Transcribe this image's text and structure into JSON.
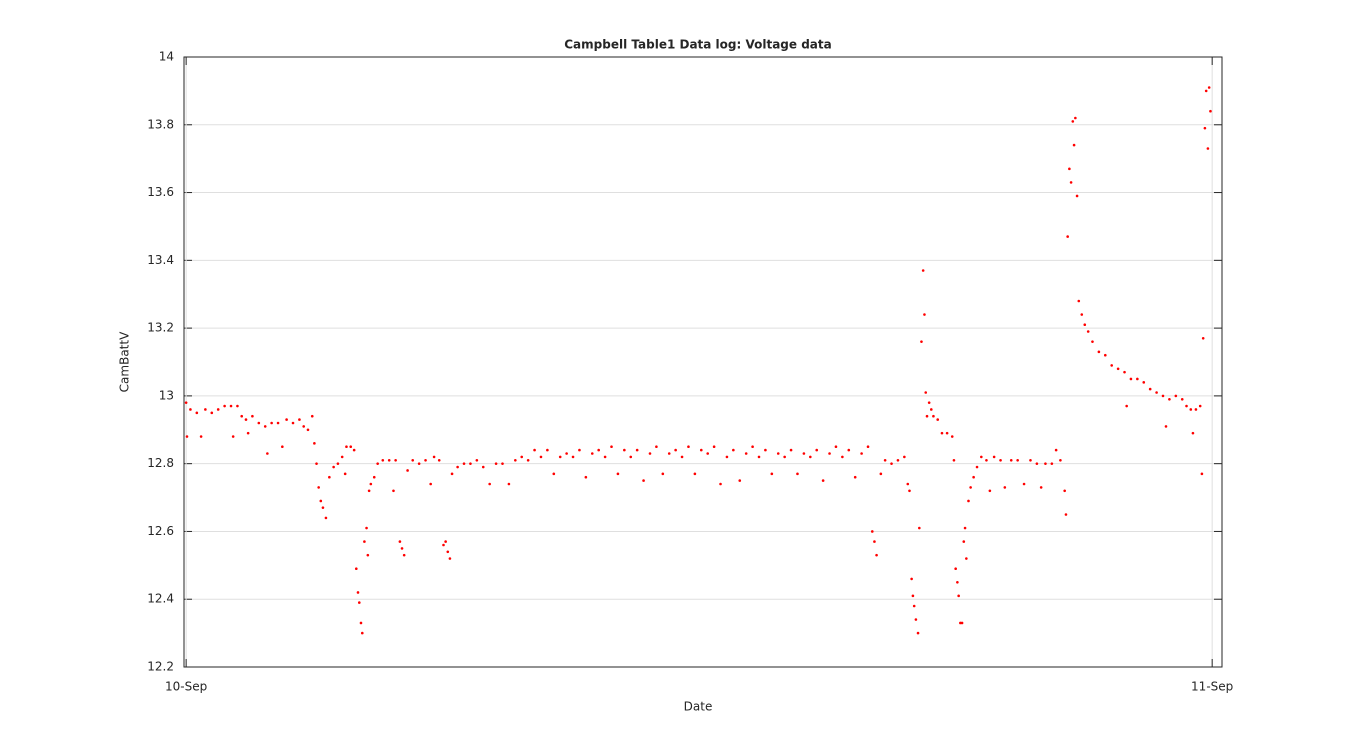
{
  "chart_data": {
    "type": "scatter",
    "title": "Campbell Table1 Data log: Voltage data",
    "x_label": "Date",
    "y_label": "CamBattV",
    "xlim": [
      -0.05,
      24.23
    ],
    "ylim": [
      12.2,
      14
    ],
    "xticks": [
      {
        "value": 0,
        "label": "10-Sep"
      },
      {
        "value": 24,
        "label": "11-Sep"
      }
    ],
    "yticks": [
      12.2,
      12.4,
      12.6,
      12.8,
      13,
      13.2,
      13.4,
      13.6,
      13.8,
      14
    ],
    "grid": true,
    "series": [
      {
        "color": "#ff0000",
        "x": [
          0.0,
          0.02,
          0.1,
          0.25,
          0.35,
          0.45,
          0.6,
          0.75,
          0.9,
          1.05,
          1.1,
          1.2,
          1.3,
          1.4,
          1.45,
          1.55,
          1.7,
          1.85,
          1.9,
          2.0,
          2.15,
          2.25,
          2.35,
          2.5,
          2.65,
          2.75,
          2.85,
          2.95,
          3.0,
          3.05,
          3.1,
          3.15,
          3.2,
          3.27,
          3.35,
          3.45,
          3.55,
          3.65,
          3.72,
          3.75,
          3.85,
          3.93,
          3.98,
          4.02,
          4.05,
          4.09,
          4.12,
          4.17,
          4.22,
          4.25,
          4.28,
          4.32,
          4.4,
          4.48,
          4.6,
          4.75,
          4.85,
          4.9,
          5.0,
          5.05,
          5.1,
          5.18,
          5.3,
          5.45,
          5.6,
          5.72,
          5.8,
          5.92,
          6.02,
          6.07,
          6.12,
          6.17,
          6.22,
          6.35,
          6.5,
          6.65,
          6.8,
          6.95,
          7.1,
          7.25,
          7.4,
          7.55,
          7.7,
          7.85,
          8.0,
          8.15,
          8.3,
          8.45,
          8.6,
          8.75,
          8.9,
          9.05,
          9.2,
          9.35,
          9.5,
          9.65,
          9.8,
          9.95,
          10.1,
          10.25,
          10.4,
          10.55,
          10.7,
          10.85,
          11.0,
          11.15,
          11.3,
          11.45,
          11.6,
          11.75,
          11.9,
          12.05,
          12.2,
          12.35,
          12.5,
          12.65,
          12.8,
          12.95,
          13.1,
          13.25,
          13.4,
          13.55,
          13.7,
          13.85,
          14.0,
          14.15,
          14.3,
          14.45,
          14.6,
          14.75,
          14.9,
          15.05,
          15.2,
          15.35,
          15.5,
          15.65,
          15.8,
          15.95,
          16.05,
          16.1,
          16.15,
          16.25,
          16.35,
          16.5,
          16.65,
          16.8,
          16.88,
          16.92,
          16.97,
          17.0,
          17.03,
          17.07,
          17.12,
          17.15,
          17.2,
          17.24,
          17.27,
          17.3,
          17.33,
          17.38,
          17.43,
          17.48,
          17.58,
          17.68,
          17.8,
          17.92,
          17.96,
          18.0,
          18.04,
          18.07,
          18.11,
          18.15,
          18.19,
          18.22,
          18.25,
          18.3,
          18.35,
          18.42,
          18.5,
          18.6,
          18.72,
          18.8,
          18.9,
          19.05,
          19.15,
          19.3,
          19.45,
          19.6,
          19.75,
          19.9,
          20.0,
          20.1,
          20.25,
          20.35,
          20.45,
          20.55,
          20.58,
          20.62,
          20.66,
          20.7,
          20.74,
          20.77,
          20.8,
          20.84,
          20.88,
          20.95,
          21.02,
          21.1,
          21.2,
          21.35,
          21.5,
          21.65,
          21.8,
          21.95,
          22.0,
          22.1,
          22.25,
          22.4,
          22.55,
          22.7,
          22.85,
          22.92,
          23.0,
          23.15,
          23.3,
          23.4,
          23.5,
          23.55,
          23.62,
          23.72,
          23.76,
          23.79,
          23.83,
          23.86,
          23.9,
          23.93,
          23.96
        ],
        "values": [
          12.98,
          12.88,
          12.96,
          12.95,
          12.88,
          12.96,
          12.95,
          12.96,
          12.97,
          12.97,
          12.88,
          12.97,
          12.94,
          12.93,
          12.89,
          12.94,
          12.92,
          12.91,
          12.83,
          12.92,
          12.92,
          12.85,
          12.93,
          12.92,
          12.93,
          12.91,
          12.9,
          12.94,
          12.86,
          12.8,
          12.73,
          12.69,
          12.67,
          12.64,
          12.76,
          12.79,
          12.8,
          12.82,
          12.77,
          12.85,
          12.85,
          12.84,
          12.49,
          12.42,
          12.39,
          12.33,
          12.3,
          12.57,
          12.61,
          12.53,
          12.72,
          12.74,
          12.76,
          12.8,
          12.81,
          12.81,
          12.72,
          12.81,
          12.57,
          12.55,
          12.53,
          12.78,
          12.81,
          12.8,
          12.81,
          12.74,
          12.82,
          12.81,
          12.56,
          12.57,
          12.54,
          12.52,
          12.77,
          12.79,
          12.8,
          12.8,
          12.81,
          12.79,
          12.74,
          12.8,
          12.8,
          12.74,
          12.81,
          12.82,
          12.81,
          12.84,
          12.82,
          12.84,
          12.77,
          12.82,
          12.83,
          12.82,
          12.84,
          12.76,
          12.83,
          12.84,
          12.82,
          12.85,
          12.77,
          12.84,
          12.82,
          12.84,
          12.75,
          12.83,
          12.85,
          12.77,
          12.83,
          12.84,
          12.82,
          12.85,
          12.77,
          12.84,
          12.83,
          12.85,
          12.74,
          12.82,
          12.84,
          12.75,
          12.83,
          12.85,
          12.82,
          12.84,
          12.77,
          12.83,
          12.82,
          12.84,
          12.77,
          12.83,
          12.82,
          12.84,
          12.75,
          12.83,
          12.85,
          12.82,
          12.84,
          12.76,
          12.83,
          12.85,
          12.6,
          12.57,
          12.53,
          12.77,
          12.81,
          12.8,
          12.81,
          12.82,
          12.74,
          12.72,
          12.46,
          12.41,
          12.38,
          12.34,
          12.3,
          12.61,
          13.16,
          13.37,
          13.24,
          13.01,
          12.94,
          12.98,
          12.96,
          12.94,
          12.93,
          12.89,
          12.89,
          12.88,
          12.81,
          12.49,
          12.45,
          12.41,
          12.33,
          12.33,
          12.57,
          12.61,
          12.52,
          12.69,
          12.73,
          12.76,
          12.79,
          12.82,
          12.81,
          12.72,
          12.82,
          12.81,
          12.73,
          12.81,
          12.81,
          12.74,
          12.81,
          12.8,
          12.73,
          12.8,
          12.8,
          12.84,
          12.81,
          12.72,
          12.65,
          13.47,
          13.67,
          13.63,
          13.81,
          13.74,
          13.82,
          13.59,
          13.28,
          13.24,
          13.21,
          13.19,
          13.16,
          13.13,
          13.12,
          13.09,
          13.08,
          13.07,
          12.97,
          13.05,
          13.05,
          13.04,
          13.02,
          13.01,
          13.0,
          12.91,
          12.99,
          13.0,
          12.99,
          12.97,
          12.96,
          12.89,
          12.96,
          12.97,
          12.77,
          13.17,
          13.79,
          13.9,
          13.73,
          13.91,
          13.84
        ]
      }
    ]
  }
}
